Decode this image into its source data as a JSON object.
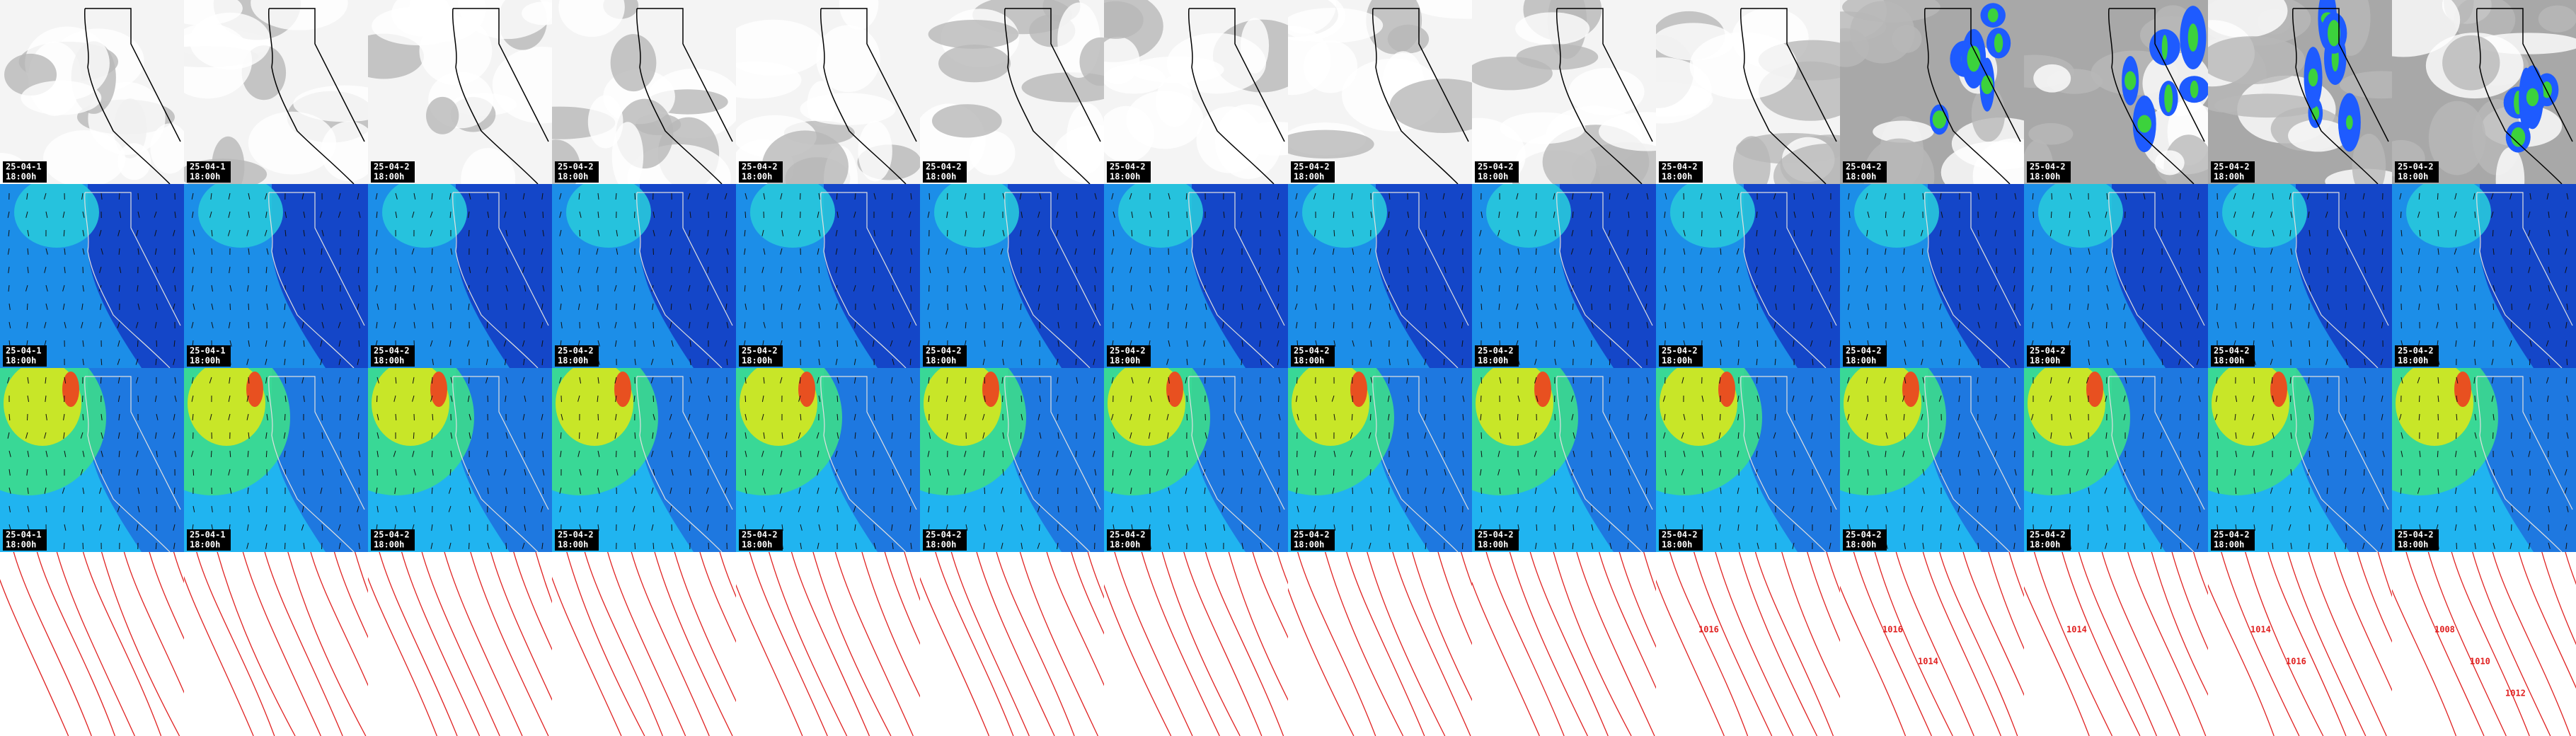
{
  "columns": [
    {
      "date": "25-04-1",
      "time": "18:00h"
    },
    {
      "date": "25-04-1",
      "time": "18:00h"
    },
    {
      "date": "25-04-2",
      "time": "18:00h"
    },
    {
      "date": "25-04-2",
      "time": "18:00h"
    },
    {
      "date": "25-04-2",
      "time": "18:00h"
    },
    {
      "date": "25-04-2",
      "time": "18:00h"
    },
    {
      "date": "25-04-2",
      "time": "18:00h"
    },
    {
      "date": "25-04-2",
      "time": "18:00h"
    },
    {
      "date": "25-04-2",
      "time": "18:00h"
    },
    {
      "date": "25-04-2",
      "time": "18:00h"
    },
    {
      "date": "25-04-2",
      "time": "18:00h"
    },
    {
      "date": "25-04-2",
      "time": "18:00h"
    },
    {
      "date": "25-04-2",
      "time": "18:00h"
    },
    {
      "date": "25-04-2",
      "time": "18:00h"
    }
  ],
  "isobar_labels": [
    {
      "column": 9,
      "labels": [
        "1016"
      ]
    },
    {
      "column": 10,
      "labels": [
        "1016",
        "1014"
      ]
    },
    {
      "column": 11,
      "labels": [
        "1014"
      ]
    },
    {
      "column": 12,
      "labels": [
        "1014",
        "1016"
      ]
    },
    {
      "column": 13,
      "labels": [
        "1008",
        "1010",
        "1012"
      ]
    }
  ]
}
